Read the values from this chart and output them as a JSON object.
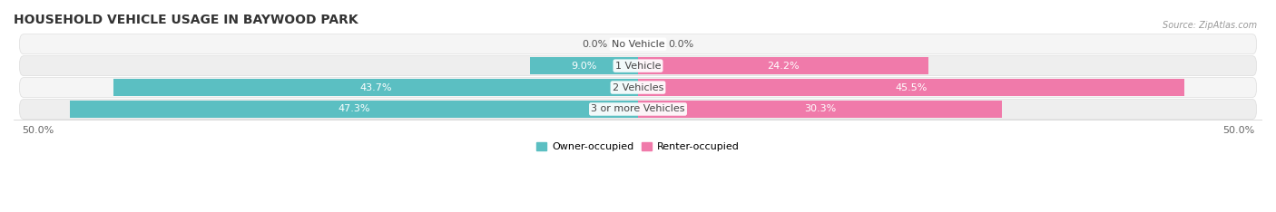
{
  "title": "HOUSEHOLD VEHICLE USAGE IN BAYWOOD PARK",
  "source": "Source: ZipAtlas.com",
  "categories": [
    "No Vehicle",
    "1 Vehicle",
    "2 Vehicles",
    "3 or more Vehicles"
  ],
  "owner_values": [
    0.0,
    9.0,
    43.7,
    47.3
  ],
  "renter_values": [
    0.0,
    24.2,
    45.5,
    30.3
  ],
  "owner_color": "#5bbfc2",
  "renter_color": "#f07aaa",
  "row_bg_light": "#f5f5f5",
  "row_bg_dark": "#eeeeee",
  "axis_limit": 50.0,
  "legend_owner": "Owner-occupied",
  "legend_renter": "Renter-occupied",
  "title_fontsize": 10,
  "label_fontsize": 8,
  "category_fontsize": 8,
  "axis_fontsize": 8,
  "value_color_inside": "#ffffff",
  "value_color_outside": "#555555"
}
